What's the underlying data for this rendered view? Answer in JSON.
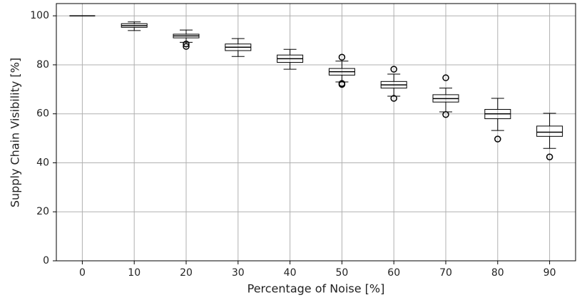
{
  "chart_data": {
    "type": "box",
    "xlabel": "Percentage of Noise [%]",
    "ylabel": "Supply Chain Visibility [%]",
    "categories": [
      "0",
      "10",
      "20",
      "30",
      "40",
      "50",
      "60",
      "70",
      "80",
      "90"
    ],
    "boxes": [
      {
        "whislo": 100,
        "q1": 100,
        "med": 100,
        "q3": 100,
        "whishi": 100,
        "fliers": []
      },
      {
        "whislo": 94,
        "q1": 95.3,
        "med": 96,
        "q3": 96.8,
        "whishi": 97.5,
        "fliers": []
      },
      {
        "whislo": 89.2,
        "q1": 91,
        "med": 91.8,
        "q3": 92.5,
        "whishi": 94.2,
        "fliers": [
          88.5,
          87.5
        ]
      },
      {
        "whislo": 83.4,
        "q1": 85.8,
        "med": 87.2,
        "q3": 88.5,
        "whishi": 90.7,
        "fliers": []
      },
      {
        "whislo": 78.2,
        "q1": 81,
        "med": 82.5,
        "q3": 84,
        "whishi": 86.3,
        "fliers": []
      },
      {
        "whislo": 73,
        "q1": 75.8,
        "med": 77.2,
        "q3": 78.5,
        "whishi": 81.5,
        "fliers": [
          83.1,
          72.4,
          72
        ]
      },
      {
        "whislo": 67.2,
        "q1": 70.5,
        "med": 71.8,
        "q3": 73.2,
        "whishi": 76.2,
        "fliers": [
          78.2,
          66.3
        ]
      },
      {
        "whislo": 60.8,
        "q1": 64.8,
        "med": 66.2,
        "q3": 67.8,
        "whishi": 70.5,
        "fliers": [
          74.7,
          59.7
        ]
      },
      {
        "whislo": 53.2,
        "q1": 58,
        "med": 60,
        "q3": 61.8,
        "whishi": 66.3,
        "fliers": [
          49.7
        ]
      },
      {
        "whislo": 45.9,
        "q1": 50.8,
        "med": 52.5,
        "q3": 55,
        "whishi": 60.2,
        "fliers": [
          42.4
        ]
      }
    ],
    "color": "#000000",
    "ylim": [
      0,
      105
    ],
    "yticks": [
      0,
      20,
      40,
      60,
      80,
      100
    ],
    "grid": true
  }
}
